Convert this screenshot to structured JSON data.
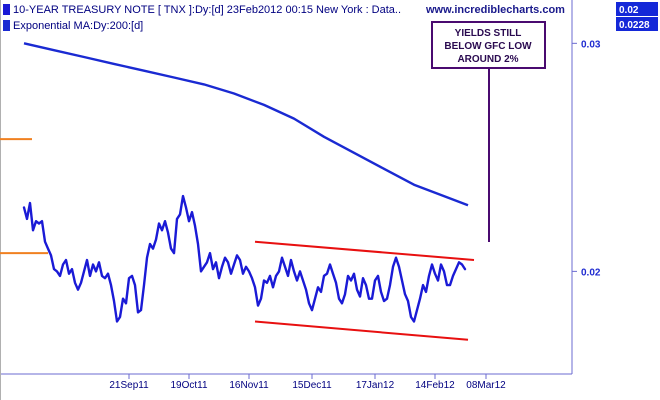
{
  "header": {
    "title_line": "10-YEAR TREASURY NOTE [ TNX ]:Dy:[d]  23Feb2012 00:15 New York : Data..",
    "ma_line": "Exponential MA:Dy:200:[d]",
    "site": "www.incrediblecharts.com",
    "badge_price": "0.02",
    "badge_ma": "0.0228"
  },
  "annotation": {
    "lines": [
      "YIELDS STILL",
      "BELOW GFC LOW",
      "AROUND 2%"
    ]
  },
  "colors": {
    "price": "#1a1ad6",
    "ma": "#1a2ad2",
    "channel": "#e81010",
    "marker": "#f08020",
    "annotation": "#4a0a70",
    "badge": "#1428d8",
    "axis": "#6b6bd0"
  },
  "chart_data": {
    "type": "line",
    "title": "10-YEAR TREASURY NOTE [ TNX ]:Dy:[d]",
    "ylim": [
      0.0155,
      0.0319
    ],
    "y_ticks": [
      {
        "label": "0.02",
        "value": 0.02
      },
      {
        "label": "0.03",
        "value": 0.03
      }
    ],
    "x_ticks": [
      {
        "label": "21Sep11",
        "index": 35
      },
      {
        "label": "19Oct11",
        "index": 55
      },
      {
        "label": "16Nov11",
        "index": 75
      },
      {
        "label": "15Dec11",
        "index": 96
      },
      {
        "label": "17Jan12",
        "index": 117
      },
      {
        "label": "14Feb12",
        "index": 137
      },
      {
        "label": "08Mar12",
        "index": 154
      }
    ],
    "x_range": [
      0,
      167
    ],
    "series": [
      {
        "name": "10-YEAR TREASURY NOTE",
        "values": [
          0.0228,
          0.0223,
          0.023,
          0.0218,
          0.0222,
          0.0221,
          0.0222,
          0.0213,
          0.021,
          0.0207,
          0.0201,
          0.02,
          0.0198,
          0.0203,
          0.0205,
          0.0199,
          0.0201,
          0.0195,
          0.0192,
          0.0195,
          0.02,
          0.0205,
          0.0198,
          0.0203,
          0.02,
          0.0204,
          0.0198,
          0.0197,
          0.0199,
          0.0194,
          0.0187,
          0.0178,
          0.018,
          0.0188,
          0.0186,
          0.0197,
          0.0198,
          0.0194,
          0.0182,
          0.0183,
          0.0194,
          0.0206,
          0.0212,
          0.021,
          0.0214,
          0.0221,
          0.0218,
          0.0222,
          0.0217,
          0.021,
          0.0208,
          0.0223,
          0.0225,
          0.0233,
          0.0228,
          0.0222,
          0.0226,
          0.022,
          0.0212,
          0.02,
          0.0202,
          0.0204,
          0.0208,
          0.0201,
          0.0204,
          0.0197,
          0.0202,
          0.0206,
          0.0204,
          0.0199,
          0.0203,
          0.0207,
          0.0205,
          0.0199,
          0.0202,
          0.02,
          0.0197,
          0.0193,
          0.0185,
          0.0188,
          0.0196,
          0.0195,
          0.0198,
          0.0193,
          0.0198,
          0.02,
          0.0206,
          0.0202,
          0.0198,
          0.0205,
          0.02,
          0.0196,
          0.02,
          0.0196,
          0.0192,
          0.0186,
          0.0183,
          0.0188,
          0.0193,
          0.0191,
          0.0198,
          0.0199,
          0.0203,
          0.0199,
          0.0195,
          0.0188,
          0.0186,
          0.019,
          0.0198,
          0.0196,
          0.0199,
          0.0192,
          0.0189,
          0.0197,
          0.0194,
          0.0188,
          0.0188,
          0.0196,
          0.0198,
          0.0191,
          0.0187,
          0.0188,
          0.0194,
          0.0202,
          0.0206,
          0.0202,
          0.0196,
          0.019,
          0.0187,
          0.018,
          0.0178,
          0.0183,
          0.0188,
          0.0194,
          0.0191,
          0.0198,
          0.0203,
          0.0199,
          0.0196,
          0.0203,
          0.02,
          0.0194,
          0.0194,
          0.0198,
          0.0201,
          0.0204,
          0.0203,
          0.0201
        ]
      },
      {
        "name": "Exponential MA:Dy:200",
        "x": [
          0,
          10,
          20,
          30,
          40,
          50,
          60,
          70,
          80,
          90,
          100,
          110,
          120,
          130,
          140,
          148
        ],
        "values": [
          0.03,
          0.0297,
          0.0294,
          0.0291,
          0.0288,
          0.0285,
          0.0282,
          0.0278,
          0.0273,
          0.0267,
          0.0259,
          0.0252,
          0.0245,
          0.0238,
          0.0233,
          0.0229
        ]
      }
    ],
    "channel": [
      {
        "x": [
          77,
          150
        ],
        "y": [
          0.0213,
          0.0205
        ]
      },
      {
        "x": [
          77,
          148
        ],
        "y": [
          0.0178,
          0.017
        ]
      }
    ],
    "markers": [
      0.0258,
      0.0208
    ]
  }
}
